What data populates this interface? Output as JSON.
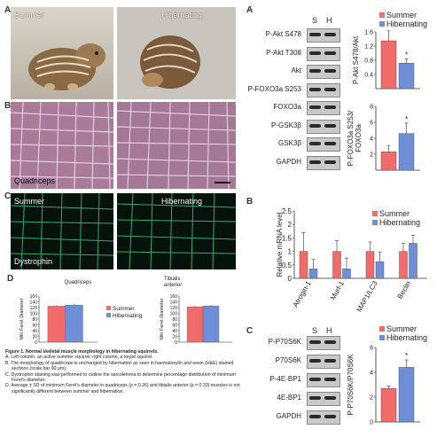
{
  "panels_left": {
    "a_letter": "A",
    "b_letter": "B",
    "c_letter": "C",
    "d_letter": "D",
    "summer": "Summer",
    "hibernating": "Hibernating",
    "quadriceps": "Quadriceps",
    "dystrophin": "Dystrophin"
  },
  "panel_d": {
    "legend": [
      "Summer",
      "Hibernating"
    ],
    "colors": {
      "summer": "#f26b6b",
      "hibernating": "#6e8fd6"
    },
    "charts": [
      {
        "title": "Quadriceps",
        "ylabel": "Min Feret Diameter",
        "ticks": [
          "160",
          "140",
          "120",
          "100",
          "80",
          "60",
          "40",
          "20",
          "0"
        ],
        "summer": 125,
        "hibernating": 129
      },
      {
        "title": "Tibialis anterior",
        "ylabel": "Min Feret Diameter",
        "ticks": [
          "160",
          "140",
          "120",
          "100",
          "80",
          "60",
          "40",
          "20",
          "0"
        ],
        "summer": 123,
        "hibernating": 126
      }
    ]
  },
  "caption": {
    "title": "Figure 1. Normal skeletal muscle morphology in hibernating squirrels.",
    "items": [
      "A. Left column, an active summer squirrel; right column, a torpid squirrel.",
      "B. The morphology of quadriceps is unchanged by hibernation as seen in haematoxylin and eosin (H&E) stained sections (scale bar 90 μm).",
      "C. Dystrophin staining was performed to outline the sarcolemma to determine percentage distribution of minimum Feret's diameter.",
      "D. Average ± SD of minimum Feret's diameter in quadriceps (p = 0.26) and tibialis anterior (p = 0.33) muscles is not significantly different between summer and hibernation."
    ]
  },
  "right_a": {
    "letter": "A",
    "col_s": "S",
    "col_h": "H",
    "blots": [
      "P-Akt S478",
      "P-Akt T308",
      "Akt",
      "P-FOXO3a S253",
      "FOXO3a",
      "P-GSK3β",
      "GSK3β",
      "GAPDH"
    ],
    "legend": [
      "Summer",
      "Hibernating"
    ]
  },
  "right_b": {
    "letter": "B",
    "legend": [
      "Summer",
      "Hibernating"
    ]
  },
  "right_c": {
    "letter": "C",
    "col_s": "S",
    "col_h": "H",
    "blots": [
      "P-P70S6K",
      "P70S6K",
      "P-4E-BP1",
      "4E-BP1",
      "GAPDH"
    ],
    "legend": [
      "Summer",
      "Hibernating"
    ]
  },
  "chart_data": [
    {
      "type": "bar",
      "ylabel": "P-Akt S478/Akt",
      "categories": [
        "Summer",
        "Hibernating"
      ],
      "values": [
        1.35,
        0.72
      ],
      "errors": [
        0.28,
        0.12
      ],
      "ylim": [
        0,
        1.6
      ],
      "ticks": [
        "1.6",
        "1.2",
        "0.8",
        "0.4"
      ],
      "significance": [
        "",
        "*"
      ]
    },
    {
      "type": "bar",
      "ylabel": "P-FOXO3a S253/ FOXO3a",
      "categories": [
        "Summer",
        "Hibernating"
      ],
      "values": [
        2.3,
        4.6
      ],
      "errors": [
        0.8,
        1.3
      ],
      "ylim": [
        0,
        8
      ],
      "ticks": [
        "8",
        "6",
        "4",
        "2"
      ],
      "significance": [
        "",
        "*"
      ]
    },
    {
      "type": "bar",
      "ylabel": "Relative mRNA level",
      "categories": [
        "Atrogin-1",
        "Murf-1",
        "MAP1/LC3",
        "Beclin"
      ],
      "series": [
        {
          "name": "Summer",
          "values": [
            1.0,
            1.0,
            1.0,
            1.0
          ],
          "errors": [
            0.7,
            0.4,
            0.35,
            0.3
          ]
        },
        {
          "name": "Hibernating",
          "values": [
            0.35,
            0.35,
            0.62,
            1.3
          ],
          "errors": [
            0.35,
            0.4,
            0.35,
            0.3
          ]
        }
      ],
      "ylim": [
        0,
        2.5
      ],
      "ticks": [
        "2.5",
        "2",
        "1.5",
        "1",
        "0.5",
        "0"
      ]
    },
    {
      "type": "bar",
      "ylabel": "P-P70S6K/P70S6K",
      "categories": [
        "Summer",
        "Hibernating"
      ],
      "values": [
        2.7,
        4.4
      ],
      "errors": [
        0.2,
        0.6
      ],
      "ylim": [
        0,
        6
      ],
      "ticks": [
        "6",
        "4",
        "2",
        "0"
      ],
      "significance": [
        "",
        "*"
      ]
    }
  ]
}
